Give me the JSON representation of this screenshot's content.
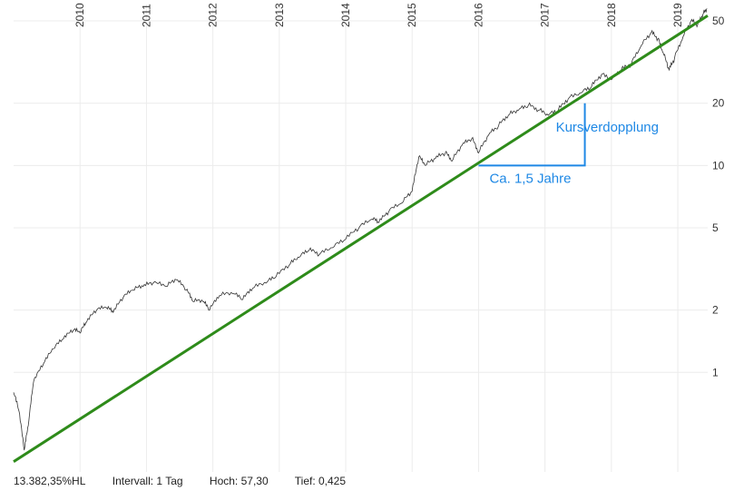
{
  "chart_data": {
    "type": "line",
    "scale": "log",
    "ylim": [
      0.33,
      60
    ],
    "y_ticks": [
      {
        "value": 1,
        "label": "1"
      },
      {
        "value": 2,
        "label": "2"
      },
      {
        "value": 5,
        "label": "5"
      },
      {
        "value": 10,
        "label": "10"
      },
      {
        "value": 20,
        "label": "20"
      },
      {
        "value": 50,
        "label": "50"
      }
    ],
    "x_range": [
      2009.0,
      2019.45
    ],
    "x_ticks": [
      "2010",
      "2011",
      "2012",
      "2013",
      "2014",
      "2015",
      "2016",
      "2017",
      "2018",
      "2019"
    ],
    "grid": true,
    "series": [
      {
        "color": "#333333",
        "points": [
          [
            2009.0,
            0.8
          ],
          [
            2009.08,
            0.65
          ],
          [
            2009.16,
            0.42
          ],
          [
            2009.22,
            0.55
          ],
          [
            2009.3,
            0.9
          ],
          [
            2009.45,
            1.1
          ],
          [
            2009.6,
            1.3
          ],
          [
            2009.75,
            1.45
          ],
          [
            2009.9,
            1.6
          ],
          [
            2010.0,
            1.55
          ],
          [
            2010.1,
            1.75
          ],
          [
            2010.25,
            2.0
          ],
          [
            2010.4,
            2.05
          ],
          [
            2010.5,
            1.95
          ],
          [
            2010.65,
            2.3
          ],
          [
            2010.8,
            2.5
          ],
          [
            2010.95,
            2.6
          ],
          [
            2011.1,
            2.7
          ],
          [
            2011.3,
            2.6
          ],
          [
            2011.45,
            2.8
          ],
          [
            2011.6,
            2.5
          ],
          [
            2011.7,
            2.2
          ],
          [
            2011.85,
            2.2
          ],
          [
            2011.95,
            2.0
          ],
          [
            2012.1,
            2.35
          ],
          [
            2012.3,
            2.4
          ],
          [
            2012.45,
            2.25
          ],
          [
            2012.6,
            2.55
          ],
          [
            2012.8,
            2.7
          ],
          [
            2012.95,
            2.9
          ],
          [
            2013.15,
            3.3
          ],
          [
            2013.3,
            3.6
          ],
          [
            2013.45,
            3.9
          ],
          [
            2013.6,
            3.7
          ],
          [
            2013.8,
            4.0
          ],
          [
            2014.0,
            4.4
          ],
          [
            2014.2,
            5.0
          ],
          [
            2014.4,
            5.5
          ],
          [
            2014.5,
            5.3
          ],
          [
            2014.65,
            6.0
          ],
          [
            2014.85,
            6.6
          ],
          [
            2015.0,
            7.5
          ],
          [
            2015.1,
            11.0
          ],
          [
            2015.2,
            10.0
          ],
          [
            2015.35,
            10.8
          ],
          [
            2015.5,
            11.5
          ],
          [
            2015.6,
            10.5
          ],
          [
            2015.75,
            12.5
          ],
          [
            2015.9,
            13.5
          ],
          [
            2016.0,
            11.5
          ],
          [
            2016.15,
            14.0
          ],
          [
            2016.3,
            15.5
          ],
          [
            2016.45,
            17.5
          ],
          [
            2016.6,
            18.5
          ],
          [
            2016.75,
            19.5
          ],
          [
            2016.9,
            18.5
          ],
          [
            2017.05,
            17.5
          ],
          [
            2017.2,
            18.5
          ],
          [
            2017.35,
            21.0
          ],
          [
            2017.55,
            22.5
          ],
          [
            2017.7,
            24.0
          ],
          [
            2017.85,
            27.5
          ],
          [
            2018.0,
            26.0
          ],
          [
            2018.15,
            29.0
          ],
          [
            2018.3,
            31.0
          ],
          [
            2018.45,
            38.0
          ],
          [
            2018.6,
            44.0
          ],
          [
            2018.7,
            41.0
          ],
          [
            2018.78,
            35.0
          ],
          [
            2018.87,
            29.0
          ],
          [
            2018.95,
            33.0
          ],
          [
            2019.08,
            42.0
          ],
          [
            2019.2,
            50.0
          ],
          [
            2019.3,
            48.0
          ],
          [
            2019.38,
            54.0
          ],
          [
            2019.44,
            57.3
          ]
        ]
      }
    ],
    "trendline": {
      "color": "#2e8b1a",
      "from": [
        2009.0,
        0.37
      ],
      "to": [
        2019.45,
        53.0
      ]
    },
    "annotations": {
      "doubling_label": "Kursverdopplung",
      "duration_label": "Ca. 1,5 Jahre",
      "color": "#1e88e5",
      "triangle": {
        "x_start": 2016.0,
        "x_end": 2017.6,
        "y_low": 10,
        "y_high": 20
      }
    },
    "footer": {
      "change": "13.382,35%HL",
      "interval": "Intervall: 1 Tag",
      "high": "Hoch:  57,30",
      "low": "Tief:  0,425"
    }
  }
}
